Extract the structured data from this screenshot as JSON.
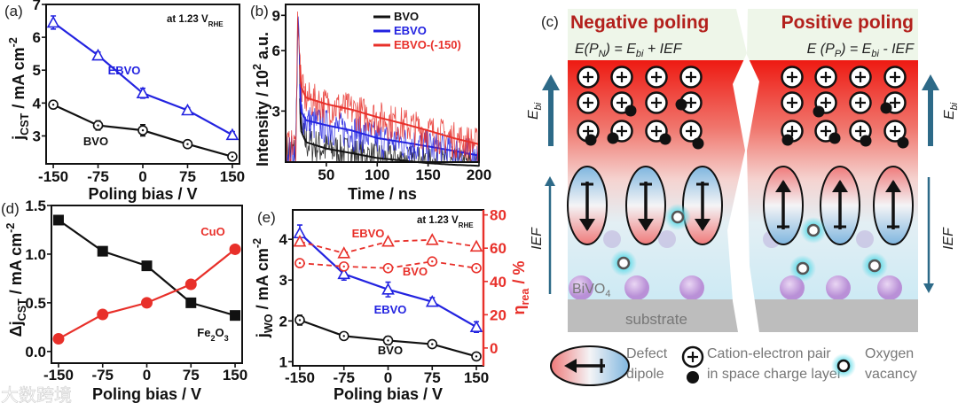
{
  "watermark": "大数跨境",
  "chart_data": [
    {
      "panel": "(a)",
      "type": "line",
      "annotation": [
        "at 1.23 V",
        "RHE"
      ],
      "xlabel": "Poling bias / V",
      "ylabel": [
        "j",
        "CST",
        " / mA cm",
        "-2"
      ],
      "x": [
        -150,
        -75,
        0,
        75,
        150
      ],
      "xticks": [
        "-150",
        "-75",
        "0",
        "75",
        "150"
      ],
      "yticks": [
        "3",
        "4",
        "5",
        "6",
        "7"
      ],
      "xlim": [
        -162,
        162
      ],
      "ylim": [
        2.15,
        7
      ],
      "series": [
        {
          "name": "EBVO",
          "label": [
            "EBVO"
          ],
          "color": "#2323e0",
          "marker": "triangle-open",
          "values": [
            6.45,
            5.45,
            4.3,
            3.78,
            3.03
          ],
          "err": [
            0.2,
            0.1,
            0.15,
            0.08,
            0.1
          ]
        },
        {
          "name": "BVO",
          "label": [
            "BVO"
          ],
          "color": "#111111",
          "marker": "circle-open",
          "values": [
            3.95,
            3.32,
            3.17,
            2.75,
            2.37
          ],
          "err": [
            0.12,
            0.14,
            0.17,
            0.08,
            0.1
          ]
        }
      ]
    },
    {
      "panel": "(b)",
      "type": "line",
      "yscale": "log",
      "xlabel": "Time / ns",
      "ylabel": [
        "Intensity / 10",
        "2",
        " a.u."
      ],
      "xticks": [
        "50",
        "100",
        "150",
        "200"
      ],
      "yticks": [
        "3",
        "6",
        "9"
      ],
      "xlim": [
        10,
        200
      ],
      "ylim": [
        1.67,
        10.2
      ],
      "legend_position": "top-right",
      "x": [
        12,
        20,
        22,
        25,
        30,
        50,
        75,
        100,
        125,
        150,
        175,
        200
      ],
      "series": [
        {
          "name": "BVO",
          "color": "#111111",
          "values": [
            1.9,
            1.9,
            9.5,
            2.4,
            2.1,
            1.95,
            1.85,
            1.75,
            1.7,
            1.65,
            1.62,
            1.6
          ]
        },
        {
          "name": "EBVO",
          "color": "#2323e0",
          "values": [
            1.9,
            1.9,
            9.5,
            3.0,
            2.7,
            2.55,
            2.4,
            2.2,
            2.1,
            2.0,
            1.9,
            1.8
          ]
        },
        {
          "name": "EBVO-(-150)",
          "color": "#e8302a",
          "values": [
            2.0,
            2.0,
            10.0,
            4.0,
            3.5,
            3.25,
            3.05,
            2.8,
            2.6,
            2.4,
            2.2,
            2.05
          ]
        }
      ]
    },
    {
      "panel": "(d)",
      "type": "line",
      "xlabel": "Poling bias / V",
      "ylabel": [
        "Δj",
        "CST",
        " / mA cm",
        "-2"
      ],
      "x": [
        -150,
        -75,
        0,
        75,
        150
      ],
      "xticks": [
        "-150",
        "-75",
        "0",
        "75",
        "150"
      ],
      "yticks": [
        "0.0",
        "0.5",
        "1.0",
        "1.5"
      ],
      "xlim": [
        -162,
        162
      ],
      "ylim": [
        -0.12,
        1.5
      ],
      "series": [
        {
          "name": "Fe2O3",
          "label": [
            "Fe",
            "2",
            "O",
            "3"
          ],
          "color": "#111111",
          "marker": "square-filled",
          "values": [
            1.35,
            1.03,
            0.88,
            0.5,
            0.37
          ]
        },
        {
          "name": "CuO",
          "label": [
            "CuO"
          ],
          "color": "#e8302a",
          "marker": "circle-filled",
          "values": [
            0.13,
            0.38,
            0.5,
            0.69,
            1.05
          ]
        }
      ]
    },
    {
      "panel": "(e)",
      "type": "line",
      "annotation": [
        "at 1.23 V",
        "RHE"
      ],
      "xlabel": "Poling bias / V",
      "ylabel": [
        "j",
        "WO",
        " / mA cm",
        "-2"
      ],
      "y2label": [
        "η",
        "rea",
        " / %"
      ],
      "x": [
        -150,
        -75,
        0,
        75,
        150
      ],
      "xticks": [
        "-150",
        "-75",
        "0",
        "75",
        "150"
      ],
      "yticks": [
        "1",
        "2",
        "3",
        "4"
      ],
      "y2ticks": [
        "0",
        "20",
        "40",
        "60",
        "80"
      ],
      "xlim": [
        -162,
        162
      ],
      "ylim": [
        0.9,
        4.72
      ],
      "y2lim": [
        -10.7,
        83
      ],
      "y2color": "#e8302a",
      "series": [
        {
          "name": "EBVO j_WO",
          "label": [
            "EBVO"
          ],
          "axis": "left",
          "color": "#2323e0",
          "marker": "triangle-open",
          "dash": false,
          "values": [
            4.15,
            3.15,
            2.77,
            2.47,
            1.85
          ],
          "err": [
            0.2,
            0.15,
            0.18,
            0.1,
            0.13
          ]
        },
        {
          "name": "BVO j_WO",
          "label": [
            "BVO"
          ],
          "axis": "left",
          "color": "#111111",
          "marker": "circle-open",
          "dash": false,
          "values": [
            2.02,
            1.63,
            1.52,
            1.43,
            1.13
          ],
          "err": [
            0.12,
            0.08,
            0.1,
            0.07,
            0.05
          ]
        },
        {
          "name": "EBVO η_rea",
          "label": [
            "EBVO"
          ],
          "axis": "right",
          "color": "#e8302a",
          "marker": "triangle-open",
          "dash": true,
          "values": [
            64,
            57,
            64,
            65,
            61
          ]
        },
        {
          "name": "BVO η_rea",
          "label": [
            "BVO"
          ],
          "axis": "right",
          "color": "#e8302a",
          "marker": "circle-open",
          "dash": true,
          "values": [
            51,
            49,
            48,
            52,
            48
          ]
        }
      ]
    }
  ],
  "diagram": {
    "panel": "(c)",
    "left": {
      "title": "Negative poling",
      "eq": [
        "E(P",
        "N",
        ") = E",
        "bi",
        " + IEF"
      ]
    },
    "right": {
      "title": "Positive poling",
      "eq": [
        "E (P",
        "P",
        ") = E",
        "bi",
        " - IEF"
      ]
    },
    "ebi": [
      "E",
      "bi"
    ],
    "ief": "IEF",
    "material": [
      "BiVO",
      "4"
    ],
    "substrate": "substrate",
    "legend": {
      "dipole": [
        "Defect",
        "dipole"
      ],
      "pair": [
        "Cation-electron pair",
        "in space charge layer"
      ],
      "vacancy": [
        "Oxygen",
        "vacancy"
      ]
    }
  }
}
